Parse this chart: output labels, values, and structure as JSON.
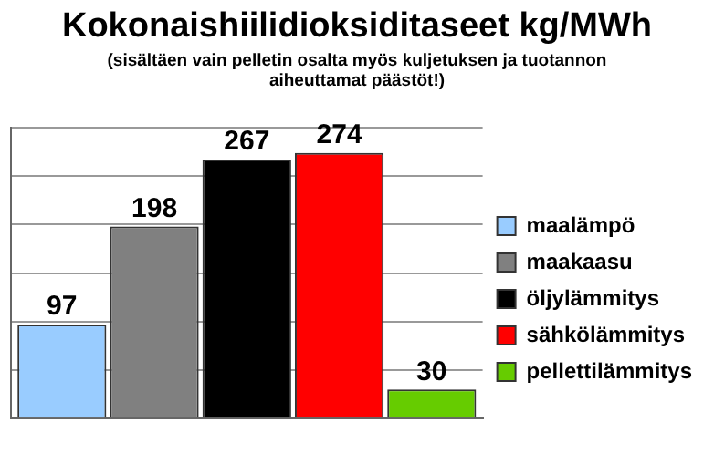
{
  "chart_data": {
    "type": "bar",
    "title": "Kokonaishiilidioksiditaseet kg/MWh",
    "subtitle": "(sisältäen vain pelletin osalta myös kuljetuksen ja tuotannon aiheuttamat päästöt!)",
    "categories": [
      null
    ],
    "series": [
      {
        "name": "maalämpö",
        "color": "#99ccff",
        "values": [
          97
        ]
      },
      {
        "name": "maakaasu",
        "color": "#808080",
        "values": [
          198
        ]
      },
      {
        "name": "öljylämmitys",
        "color": "#000000",
        "values": [
          267
        ]
      },
      {
        "name": "sähkölämmitys",
        "color": "#ff0000",
        "values": [
          274
        ]
      },
      {
        "name": "pellettilämmitys",
        "color": "#66cc00",
        "values": [
          30
        ]
      }
    ],
    "ylim": [
      0,
      300
    ],
    "yticks": [
      {
        "value": 0,
        "label": null
      },
      {
        "value": 50,
        "label": null
      },
      {
        "value": 100,
        "label": null
      },
      {
        "value": 150,
        "label": null
      },
      {
        "value": 200,
        "label": null
      },
      {
        "value": 250,
        "label": null
      },
      {
        "value": 300,
        "label": null
      }
    ],
    "grid": "y",
    "legend": "right",
    "data_labels": true
  }
}
